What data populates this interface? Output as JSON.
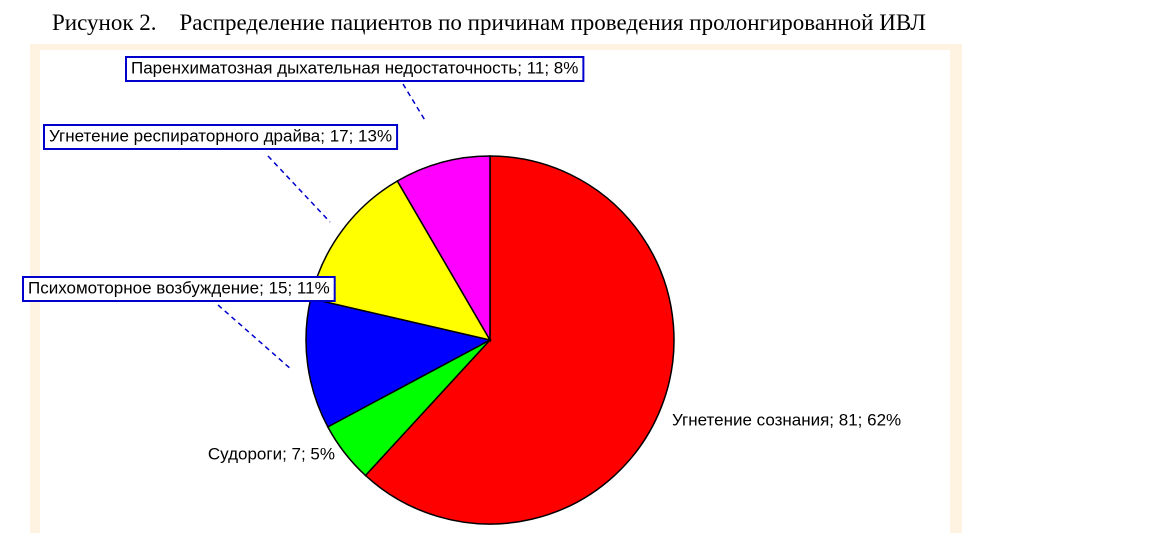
{
  "chart_data": {
    "type": "pie",
    "title": "Рисунок 2.    Распределение пациентов по причинам проведения пролонгированной ИВЛ",
    "values": [
      81,
      7,
      15,
      17,
      11
    ],
    "value_labels": [
      "Угнетение сознания; 81; 62%",
      "Судороги; 7; 5%",
      "Психомоторное возбуждение; 15; 11%",
      "Угнетение респираторного драйва; 17; 13%",
      "Паренхиматозная дыхательная недостаточность; 11; 8%"
    ],
    "colors": [
      "#ff0000",
      "#00ff00",
      "#0000ff",
      "#ffff00",
      "#ff00ff"
    ]
  }
}
